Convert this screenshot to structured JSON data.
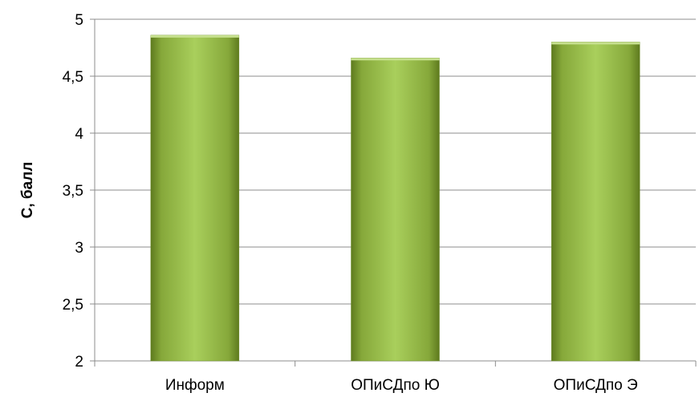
{
  "chart_data": {
    "type": "bar",
    "title": "",
    "xlabel": "",
    "ylabel": "С, балл",
    "ylim": [
      2,
      5
    ],
    "yticks": [
      "2",
      "2,5",
      "3",
      "3,5",
      "4",
      "4,5",
      "5"
    ],
    "categories": [
      "Информ",
      "ОПиСДпо Ю",
      "ОПиСДпо Э"
    ],
    "values": [
      4.86,
      4.66,
      4.8
    ],
    "grid": true,
    "legend": "none",
    "bar_color": "#9bbb59"
  }
}
